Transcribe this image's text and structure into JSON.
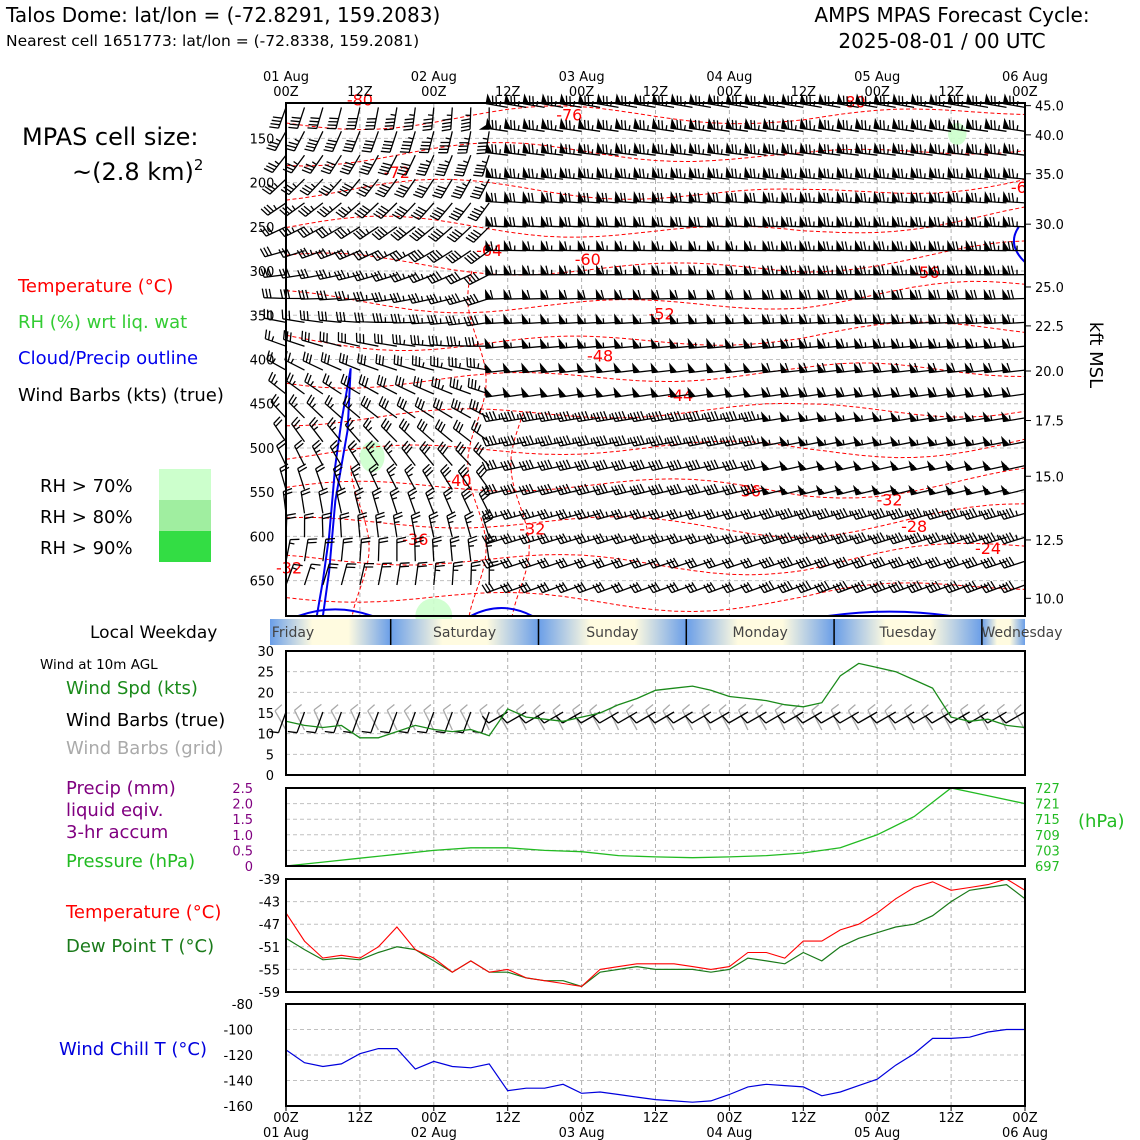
{
  "header": {
    "station": "Talos Dome: lat/lon = (-72.8291, 159.2083)",
    "nearest": "Nearest cell 1651773: lat/lon = (-72.8338, 159.2081)",
    "model_line1": "AMPS MPAS Forecast Cycle:",
    "model_line2": "2025-08-01 / 00 UTC"
  },
  "left_panel": {
    "cell_size_line1": "MPAS cell size:",
    "cell_size_line2": "~(2.8 km)",
    "cell_size_sup": "2",
    "legend_temperature": "Temperature (°C)",
    "legend_rh": "RH (%) wrt liq. wat",
    "legend_cloud": "Cloud/Precip outline",
    "legend_wind": "Wind Barbs (kts) (true)",
    "rh70": "RH > 70%",
    "rh80": "RH > 80%",
    "rh90": "RH > 90%",
    "local_weekday": "Local Weekday",
    "wind10m": "Wind at 10m AGL",
    "wind_spd": "Wind Spd (kts)",
    "wind_barbs_true": "Wind Barbs (true)",
    "wind_barbs_grid": "Wind Barbs (grid)",
    "precip_1": "Precip (mm)",
    "precip_2": "liquid eqiv.",
    "precip_3": "3-hr accum",
    "pressure": "Pressure (hPa)",
    "temperature": "Temperature (°C)",
    "dewpoint": "Dew Point T (°C)",
    "windchill": "Wind Chill T (°C)"
  },
  "colors": {
    "temperature": "#ff0000",
    "rh_green": "#33cc33",
    "cloud": "#0000ee",
    "wind_speed": "#1a8a1a",
    "pressure": "#22bb22",
    "precip": "#800080",
    "dewpoint": "#1a7a1a",
    "windchill": "#0000dd",
    "rh70": "#ccffcc",
    "rh80": "#a0eea0",
    "rh90": "#33dd44",
    "grid_barb": "#aaaaaa"
  },
  "chart_data": [
    {
      "type": "heatmap",
      "name": "time-height cross-section",
      "x_top_date_labels": [
        "01 Aug",
        "02 Aug",
        "03 Aug",
        "04 Aug",
        "05 Aug",
        "06 Aug"
      ],
      "x_top_hour_labels": [
        "00Z",
        "12Z",
        "00Z",
        "12Z",
        "00Z",
        "12Z",
        "00Z",
        "12Z",
        "00Z",
        "12Z",
        "00Z"
      ],
      "pressure_ticks": [
        150,
        200,
        250,
        300,
        350,
        400,
        450,
        500,
        550,
        600,
        650
      ],
      "ylim_hpa": [
        110,
        690
      ],
      "kft_ticks": [
        45.0,
        40.0,
        35.0,
        30.0,
        25.0,
        22.5,
        20.0,
        17.5,
        15.0,
        12.5,
        10.0
      ],
      "kft_ticks_hpa": [
        113,
        146,
        190,
        247,
        318,
        362,
        413,
        469,
        532,
        604,
        670
      ],
      "right_axis_label": "kft MSL",
      "temperature_contour_labels": [
        {
          "text": "-80",
          "hour": 12,
          "p": 113
        },
        {
          "text": "-76",
          "hour": 46,
          "p": 130
        },
        {
          "text": "-72",
          "hour": 18,
          "p": 195
        },
        {
          "text": "-64",
          "hour": 33,
          "p": 283
        },
        {
          "text": "-60",
          "hour": 49,
          "p": 293
        },
        {
          "text": "-56",
          "hour": 104,
          "p": 308
        },
        {
          "text": "-52",
          "hour": 61,
          "p": 355
        },
        {
          "text": "-48",
          "hour": 51,
          "p": 402
        },
        {
          "text": "-44",
          "hour": 64,
          "p": 447
        },
        {
          "text": "-40",
          "hour": 28,
          "p": 543
        },
        {
          "text": "-36",
          "hour": 75,
          "p": 555
        },
        {
          "text": "-32",
          "hour": 98,
          "p": 565
        },
        {
          "text": "-36",
          "hour": 21,
          "p": 610
        },
        {
          "text": "-32",
          "hour": 40,
          "p": 598
        },
        {
          "text": "-28",
          "hour": 102,
          "p": 595
        },
        {
          "text": "-24",
          "hour": 114,
          "p": 620
        },
        {
          "text": "-32",
          "hour": 0.5,
          "p": 642
        },
        {
          "text": "-80",
          "hour": 92,
          "p": 115
        },
        {
          "text": "-6",
          "hour": 119,
          "p": 212
        }
      ],
      "rh_regions": [
        {
          "level": "70",
          "hour": 14,
          "p": 510,
          "w_hours": 4,
          "h_hpa": 35
        },
        {
          "level": "70",
          "hour": 24,
          "p": 690,
          "w_hours": 6,
          "h_hpa": 40
        },
        {
          "level": "70",
          "hour": 109,
          "p": 145,
          "w_hours": 3,
          "h_hpa": 25
        }
      ],
      "cloud_outline_hours": [
        5,
        6,
        7,
        8,
        9,
        10,
        10.5,
        10,
        8,
        7,
        6
      ],
      "cloud_outline_hpa": [
        690,
        650,
        600,
        520,
        470,
        430,
        410,
        480,
        560,
        640,
        690
      ]
    },
    {
      "type": "table",
      "name": "local weekday band",
      "days": [
        "Friday",
        "Saturday",
        "Sunday",
        "Monday",
        "Tuesday",
        "Wednesday"
      ]
    },
    {
      "type": "line",
      "name": "10m wind speed",
      "ylim": [
        0,
        30
      ],
      "yticks": [
        0,
        5,
        10,
        15,
        20,
        25,
        30
      ],
      "x_hours": [
        0,
        3,
        6,
        9,
        12,
        15,
        18,
        21,
        24,
        27,
        30,
        33,
        36,
        39,
        42,
        45,
        48,
        51,
        54,
        57,
        60,
        63,
        66,
        69,
        72,
        75,
        78,
        81,
        84,
        87,
        90,
        93,
        96,
        99,
        102,
        105,
        108,
        111,
        114,
        117,
        120
      ],
      "values": [
        13,
        12,
        11.5,
        12,
        9,
        9,
        10.5,
        12,
        11,
        10.5,
        11,
        9.5,
        16,
        14,
        13.5,
        13,
        14,
        15,
        17,
        18.5,
        20.5,
        21,
        21.5,
        20.5,
        19,
        18.5,
        18,
        17,
        16.5,
        17.5,
        24,
        27,
        26,
        25,
        23,
        21,
        14,
        13,
        13.5,
        12,
        11.5
      ]
    },
    {
      "type": "line",
      "name": "pressure and precip",
      "precip_ylim": [
        0,
        2.5
      ],
      "precip_ticks": [
        "0",
        "0.5",
        "1.0",
        "1.5",
        "2.0",
        "2.5"
      ],
      "pressure_ylim": [
        697,
        727
      ],
      "pressure_ticks": [
        697,
        703,
        709,
        715,
        721,
        727
      ],
      "pressure_unit": "(hPa)",
      "x_hours": [
        0,
        6,
        12,
        18,
        24,
        30,
        36,
        42,
        48,
        54,
        60,
        66,
        72,
        78,
        84,
        90,
        96,
        102,
        108,
        114,
        120
      ],
      "pressure": [
        697,
        698.5,
        700,
        701.5,
        703,
        704,
        704,
        703,
        702.5,
        701,
        700.5,
        700.2,
        700.5,
        701,
        702,
        704,
        709,
        716,
        727,
        724,
        721
      ]
    },
    {
      "type": "line",
      "name": "temperature and dew point",
      "ylim": [
        -59,
        -39
      ],
      "yticks": [
        -59,
        -55,
        -51,
        -47,
        -43,
        -39
      ],
      "x_hours": [
        0,
        3,
        6,
        9,
        12,
        15,
        18,
        21,
        24,
        27,
        30,
        33,
        36,
        39,
        42,
        45,
        48,
        51,
        54,
        57,
        60,
        63,
        66,
        69,
        72,
        75,
        78,
        81,
        84,
        87,
        90,
        93,
        96,
        99,
        102,
        105,
        108,
        111,
        114,
        117,
        120
      ],
      "temperature": [
        -45,
        -50,
        -53,
        -52.5,
        -53,
        -51,
        -47.5,
        -51.5,
        -53,
        -55.5,
        -53.5,
        -55.5,
        -55,
        -56.5,
        -57,
        -57.5,
        -58,
        -55,
        -54.5,
        -54,
        -54,
        -54,
        -54.5,
        -55,
        -54.5,
        -52,
        -52,
        -53,
        -50,
        -50,
        -48,
        -47,
        -45,
        -42.5,
        -40.5,
        -39.5,
        -41,
        -40.5,
        -40,
        -39,
        -41
      ],
      "dewpoint": [
        -49.5,
        -51.5,
        -53.3,
        -53,
        -53.3,
        -52,
        -51,
        -51.5,
        -53.5,
        -55.5,
        -53.5,
        -55.5,
        -55.5,
        -56.5,
        -57,
        -57,
        -58,
        -55.5,
        -55,
        -54.5,
        -55,
        -55,
        -55,
        -55.5,
        -55,
        -53,
        -53.5,
        -54,
        -52,
        -53.5,
        -51,
        -49.5,
        -48.5,
        -47.5,
        -47,
        -45.5,
        -43,
        -41,
        -40.5,
        -40,
        -42.5
      ]
    },
    {
      "type": "line",
      "name": "wind chill",
      "ylim": [
        -160,
        -80
      ],
      "yticks": [
        -160,
        -140,
        -120,
        -100,
        -80
      ],
      "x_hours": [
        0,
        3,
        6,
        9,
        12,
        15,
        18,
        21,
        24,
        27,
        30,
        33,
        36,
        39,
        42,
        45,
        48,
        51,
        54,
        57,
        60,
        63,
        66,
        69,
        72,
        75,
        78,
        81,
        84,
        87,
        90,
        93,
        96,
        99,
        102,
        105,
        108,
        111,
        114,
        117,
        120
      ],
      "values": [
        -116,
        -126,
        -129,
        -127,
        -119,
        -115,
        -115,
        -131,
        -125,
        -129,
        -130,
        -127,
        -148,
        -146,
        -146,
        -143,
        -150,
        -149,
        -151,
        -153,
        -155,
        -156,
        -157,
        -156,
        -151,
        -145,
        -143,
        -144,
        -145,
        -152,
        -149,
        -144,
        -139,
        -128,
        -119,
        -107,
        -107,
        -106,
        -102,
        -100,
        -100
      ]
    }
  ],
  "bottom_axis": {
    "hour_labels": [
      "00Z",
      "12Z",
      "00Z",
      "12Z",
      "00Z",
      "12Z",
      "00Z",
      "12Z",
      "00Z",
      "12Z",
      "00Z"
    ],
    "date_labels": [
      "01 Aug",
      "02 Aug",
      "03 Aug",
      "04 Aug",
      "05 Aug",
      "06 Aug"
    ]
  }
}
